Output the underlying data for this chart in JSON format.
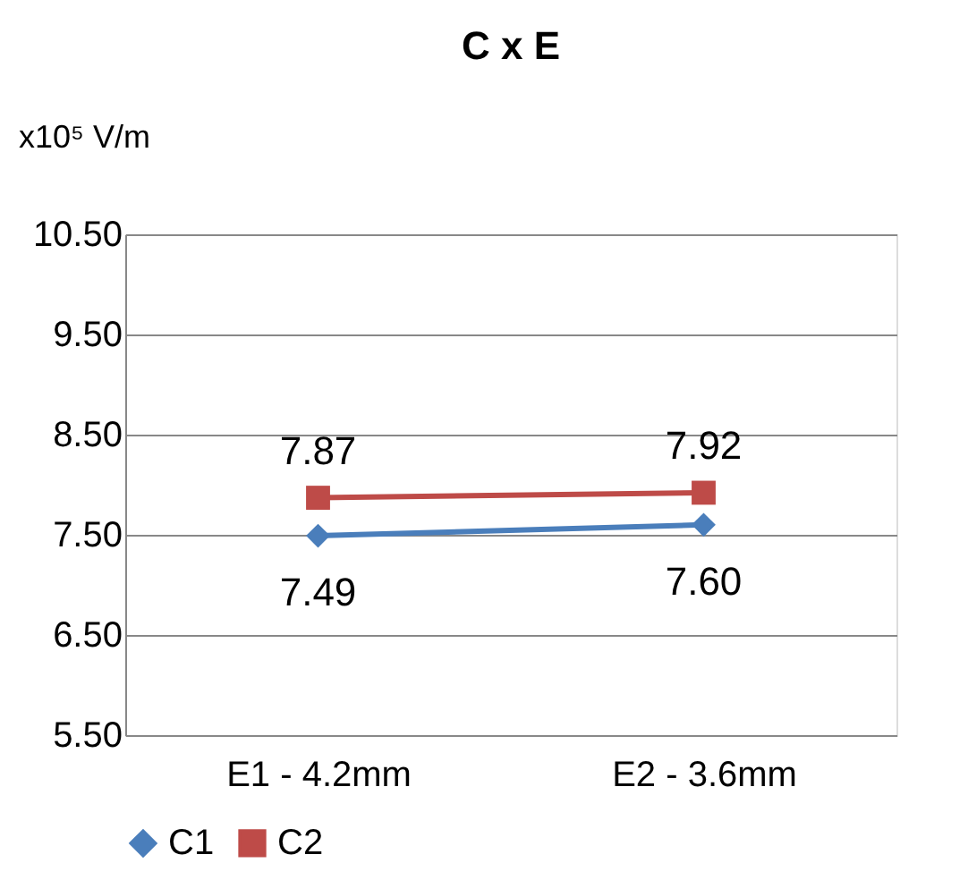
{
  "chart_data": {
    "type": "line",
    "title": "C x E",
    "ylabel": "x10⁵ V/m",
    "categories": [
      "E1 - 4.2mm",
      "E2 - 3.6mm"
    ],
    "series": [
      {
        "name": "C1",
        "color": "#4a7ebb",
        "values": [
          7.49,
          7.6
        ],
        "value_labels": [
          "7.49",
          "7.60"
        ],
        "marker": "diamond"
      },
      {
        "name": "C2",
        "color": "#be4b48",
        "values": [
          7.87,
          7.92
        ],
        "value_labels": [
          "7.87",
          "7.92"
        ],
        "marker": "square"
      }
    ],
    "ylim": [
      5.5,
      10.5
    ],
    "yticks": [
      {
        "value": 5.5,
        "label": "5.50"
      },
      {
        "value": 6.5,
        "label": "6.50"
      },
      {
        "value": 7.5,
        "label": "7.50"
      },
      {
        "value": 8.5,
        "label": "8.50"
      },
      {
        "value": 9.5,
        "label": "9.50"
      },
      {
        "value": 10.5,
        "label": "10.50"
      }
    ],
    "grid": "y",
    "legend": "bottom"
  }
}
